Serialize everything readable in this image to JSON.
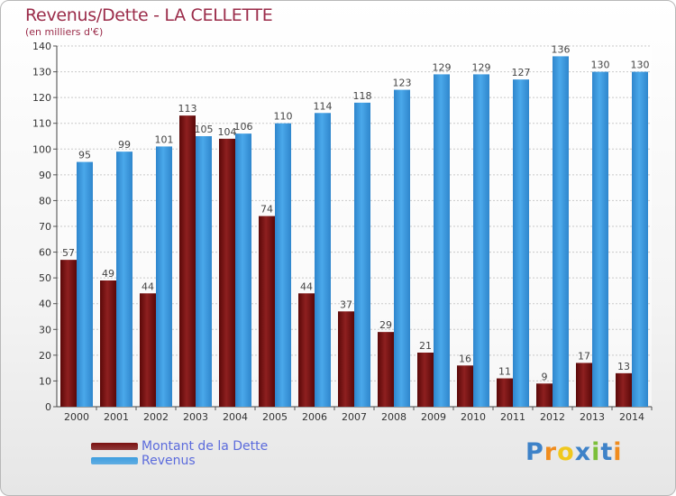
{
  "header": {
    "title": "Revenus/Dette - LA CELLETTE",
    "subtitle": "(en milliers d'€)"
  },
  "legend": {
    "items": [
      {
        "label": "Montant de la Dette",
        "color": "#7a1010"
      },
      {
        "label": "Revenus",
        "color": "#3e9ee0"
      }
    ]
  },
  "logo": {
    "text": "Proxiti",
    "letters": [
      "P",
      "r",
      "o",
      "x",
      "i",
      "t",
      "i"
    ],
    "colors": [
      "#3e82c8",
      "#f08c1e",
      "#f0c81e",
      "#3e82c8",
      "#7bbf3a",
      "#3e82c8",
      "#f08c1e"
    ]
  },
  "chart_data": {
    "type": "bar",
    "categories": [
      "2000",
      "2001",
      "2002",
      "2003",
      "2004",
      "2005",
      "2006",
      "2007",
      "2008",
      "2009",
      "2010",
      "2011",
      "2012",
      "2013",
      "2014"
    ],
    "series": [
      {
        "name": "Montant de la Dette",
        "color": "#7a1010",
        "values": [
          57,
          49,
          44,
          113,
          104,
          74,
          44,
          37,
          29,
          21,
          16,
          11,
          9,
          17,
          13
        ]
      },
      {
        "name": "Revenus",
        "color": "#3e9ee0",
        "values": [
          95,
          99,
          101,
          105,
          106,
          110,
          114,
          118,
          123,
          129,
          129,
          127,
          136,
          130,
          130
        ]
      }
    ],
    "yticks": [
      0,
      10,
      20,
      30,
      40,
      50,
      60,
      70,
      80,
      90,
      100,
      110,
      120,
      130,
      140
    ],
    "ylim": [
      0,
      140
    ],
    "grid": true,
    "legend_position": "bottom-left"
  }
}
